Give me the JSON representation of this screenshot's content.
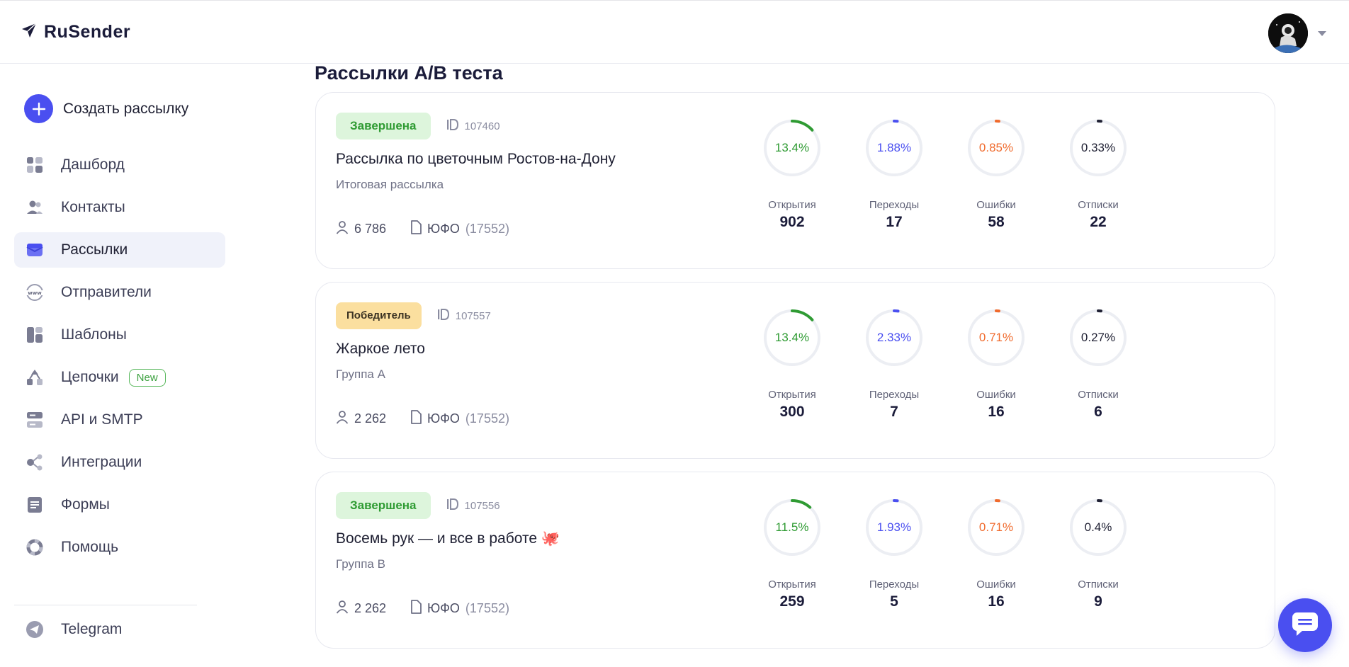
{
  "app": {
    "name": "RuSender"
  },
  "sidebar": {
    "create_label": "Создать рассылку",
    "items": [
      {
        "label": "Дашборд",
        "icon": "dashboard-icon"
      },
      {
        "label": "Контакты",
        "icon": "contacts-icon"
      },
      {
        "label": "Рассылки",
        "icon": "mail-icon",
        "active": true
      },
      {
        "label": "Отправители",
        "icon": "www-icon"
      },
      {
        "label": "Шаблоны",
        "icon": "templates-icon"
      },
      {
        "label": "Цепочки",
        "icon": "chains-icon",
        "badge": "New"
      },
      {
        "label": "API и SMTP",
        "icon": "server-icon"
      },
      {
        "label": "Интеграции",
        "icon": "integrations-icon"
      },
      {
        "label": "Формы",
        "icon": "forms-icon"
      },
      {
        "label": "Помощь",
        "icon": "help-icon"
      }
    ],
    "telegram": "Telegram"
  },
  "main": {
    "title": "Рассылки A/B теста",
    "cards": [
      {
        "status": "Завершена",
        "status_type": "done",
        "id": "107460",
        "title": "Рассылка по цветочным Ростов-на-Дону",
        "subtitle": "Итоговая рассылка",
        "recipients": "6 786",
        "list_name": "ЮФО",
        "list_count": "(17552)",
        "stats": [
          {
            "pct": "13.4%",
            "label": "Открытия",
            "value": "902"
          },
          {
            "pct": "1.88%",
            "label": "Переходы",
            "value": "17"
          },
          {
            "pct": "0.85%",
            "label": "Ошибки",
            "value": "58"
          },
          {
            "pct": "0.33%",
            "label": "Отписки",
            "value": "22"
          }
        ]
      },
      {
        "status": "Победитель",
        "status_type": "win",
        "id": "107557",
        "title": "Жаркое лето",
        "subtitle": "Группа A",
        "recipients": "2 262",
        "list_name": "ЮФО",
        "list_count": "(17552)",
        "stats": [
          {
            "pct": "13.4%",
            "label": "Открытия",
            "value": "300"
          },
          {
            "pct": "2.33%",
            "label": "Переходы",
            "value": "7"
          },
          {
            "pct": "0.71%",
            "label": "Ошибки",
            "value": "16"
          },
          {
            "pct": "0.27%",
            "label": "Отписки",
            "value": "6"
          }
        ]
      },
      {
        "status": "Завершена",
        "status_type": "done",
        "id": "107556",
        "title": "Восемь рук — и все в работе 🐙",
        "subtitle": "Группа B",
        "recipients": "2 262",
        "list_name": "ЮФО",
        "list_count": "(17552)",
        "stats": [
          {
            "pct": "11.5%",
            "label": "Открытия",
            "value": "259"
          },
          {
            "pct": "1.93%",
            "label": "Переходы",
            "value": "5"
          },
          {
            "pct": "0.71%",
            "label": "Ошибки",
            "value": "16"
          },
          {
            "pct": "0.4%",
            "label": "Отписки",
            "value": "9"
          }
        ]
      }
    ]
  },
  "colors": {
    "accent": "#4a4ff0",
    "opens": "#2f9b33",
    "clicks": "#4a4ff0",
    "errors": "#f06a2c",
    "unsubs": "#1f2033",
    "track": "#eceef3"
  }
}
